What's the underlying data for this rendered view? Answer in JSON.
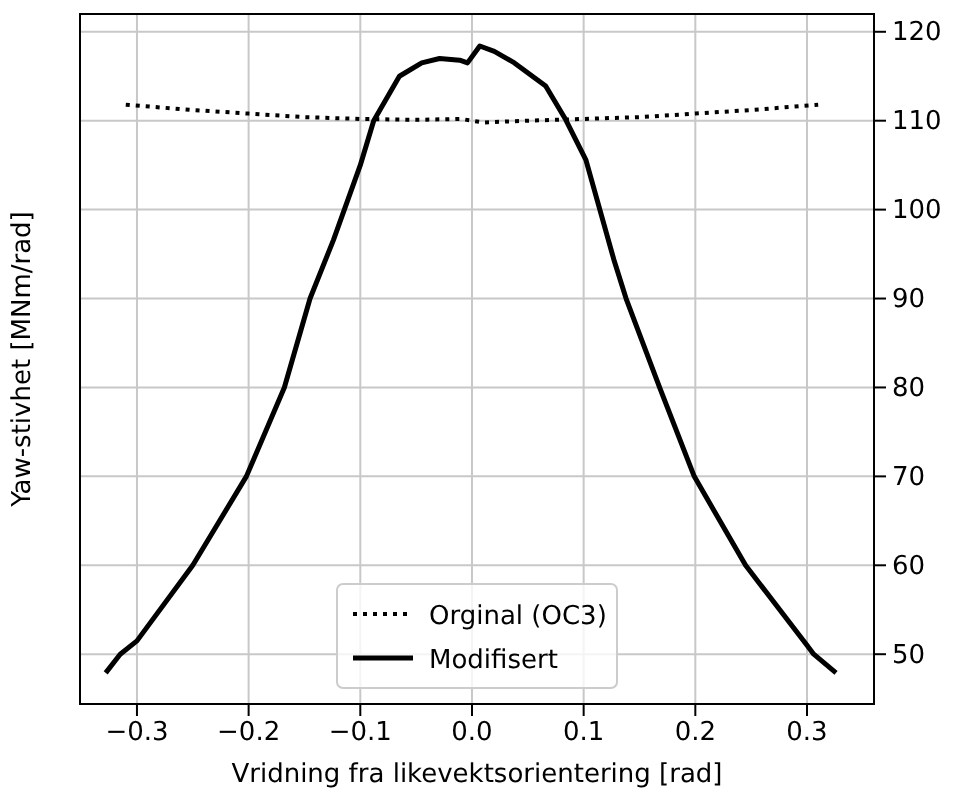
{
  "chart_data": {
    "type": "line",
    "xlabel": "Vridning fra likevektsorientering [rad]",
    "ylabel": "Yaw-stivhet [MNm/rad]",
    "xlim": [
      -0.351,
      0.36
    ],
    "xticks": [
      {
        "value": -0.3,
        "label": "−0.3"
      },
      {
        "value": -0.2,
        "label": "−0.2"
      },
      {
        "value": -0.1,
        "label": "−0.1"
      },
      {
        "value": 0,
        "label": "0.0"
      },
      {
        "value": 0.1,
        "label": "0.1"
      },
      {
        "value": 0.2,
        "label": "0.2"
      },
      {
        "value": 0.3,
        "label": "0.3"
      }
    ],
    "ylim": [
      44.4,
      122
    ],
    "yticks": [
      50,
      60,
      70,
      80,
      90,
      100,
      110,
      120
    ],
    "grid": true,
    "legend": "bottom",
    "series": [
      {
        "name": "Orginal (OC3)",
        "color": "#000000",
        "line_style": "dotted",
        "x": [
          -0.31,
          -0.25,
          -0.2,
          -0.15,
          -0.1,
          -0.05,
          -0.01,
          0.0,
          0.01,
          0.05,
          0.1,
          0.15,
          0.2,
          0.25,
          0.31
        ],
        "values": [
          111.8,
          111.2,
          110.8,
          110.4,
          110.2,
          110.1,
          110.2,
          110.0,
          109.8,
          110.0,
          110.2,
          110.4,
          110.8,
          111.2,
          111.8
        ]
      },
      {
        "name": "Modifisert",
        "color": "#000000",
        "line_style": "solid",
        "x": [
          -0.328,
          -0.315,
          -0.3,
          -0.25,
          -0.202,
          -0.168,
          -0.145,
          -0.124,
          -0.1,
          -0.088,
          -0.065,
          -0.045,
          -0.029,
          -0.011,
          -0.004,
          0.007,
          0.02,
          0.038,
          0.066,
          0.084,
          0.102,
          0.127,
          0.138,
          0.168,
          0.199,
          0.245,
          0.3,
          0.306,
          0.326
        ],
        "values": [
          47.9,
          50,
          51.5,
          60,
          70,
          80,
          90,
          96.6,
          105,
          110,
          115,
          116.5,
          117,
          116.8,
          116.5,
          118.4,
          117.8,
          116.5,
          113.9,
          110.1,
          105.6,
          94.4,
          90,
          80,
          70,
          60,
          51,
          50,
          47.9
        ]
      }
    ]
  }
}
